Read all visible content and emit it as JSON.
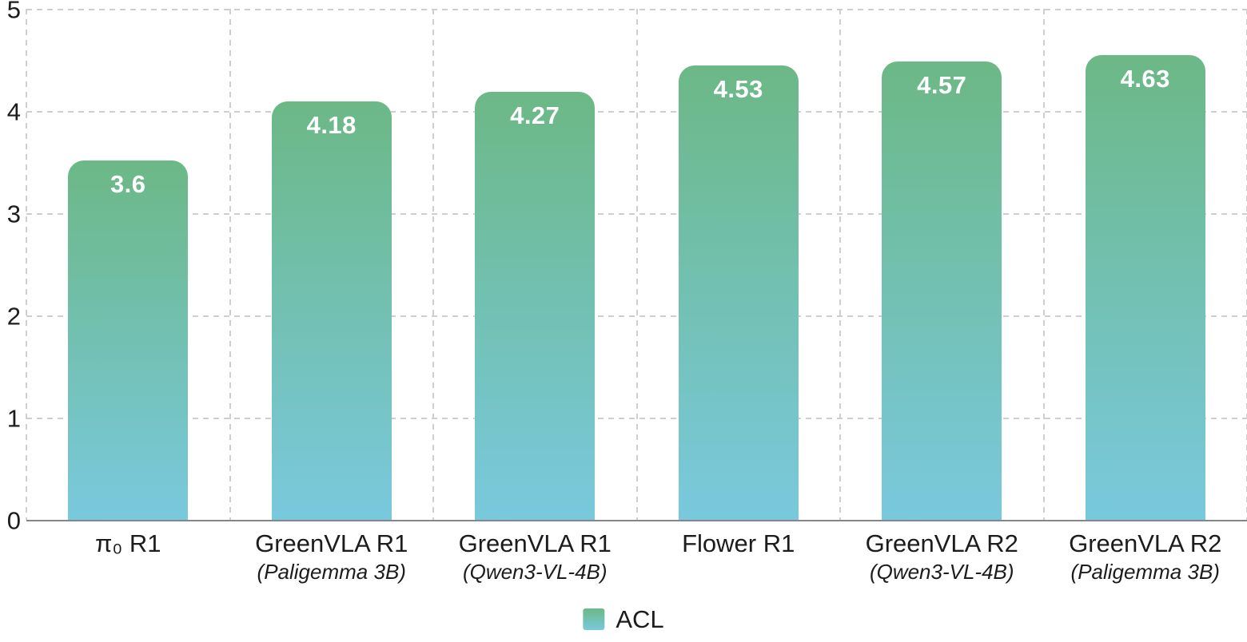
{
  "chart_data": {
    "type": "bar",
    "title": "",
    "categories": [
      {
        "label": "π₀ R1",
        "sublabel": ""
      },
      {
        "label": "GreenVLA R1",
        "sublabel": "(Paligemma 3B)"
      },
      {
        "label": "GreenVLA R1",
        "sublabel": "(Qwen3-VL-4B)"
      },
      {
        "label": "Flower R1",
        "sublabel": ""
      },
      {
        "label": "GreenVLA R2",
        "sublabel": "(Qwen3-VL-4B)"
      },
      {
        "label": "GreenVLA R2",
        "sublabel": "(Paligemma 3B)"
      }
    ],
    "series": [
      {
        "name": "ACL",
        "values": [
          3.6,
          4.18,
          4.27,
          4.53,
          4.57,
          4.63
        ]
      }
    ],
    "value_labels": [
      "3.6",
      "4.18",
      "4.27",
      "4.53",
      "4.57",
      "4.63"
    ],
    "ylim": [
      0,
      5
    ],
    "yticks": [
      0,
      1,
      2,
      3,
      4,
      5
    ],
    "ytick_labels": [
      "0",
      "1",
      "2",
      "3",
      "4",
      "5"
    ],
    "grid": "dashed, horizontal and vertical",
    "legend": {
      "label": "ACL",
      "position": "bottom-center"
    },
    "colors": {
      "bar_gradient_top": "#6cb886",
      "bar_gradient_bottom": "#79c9de",
      "bar_value_text": "#ffffff",
      "gridline": "#cfcfcf",
      "axis_line": "#85858d",
      "text": "#1c1c1e"
    }
  }
}
